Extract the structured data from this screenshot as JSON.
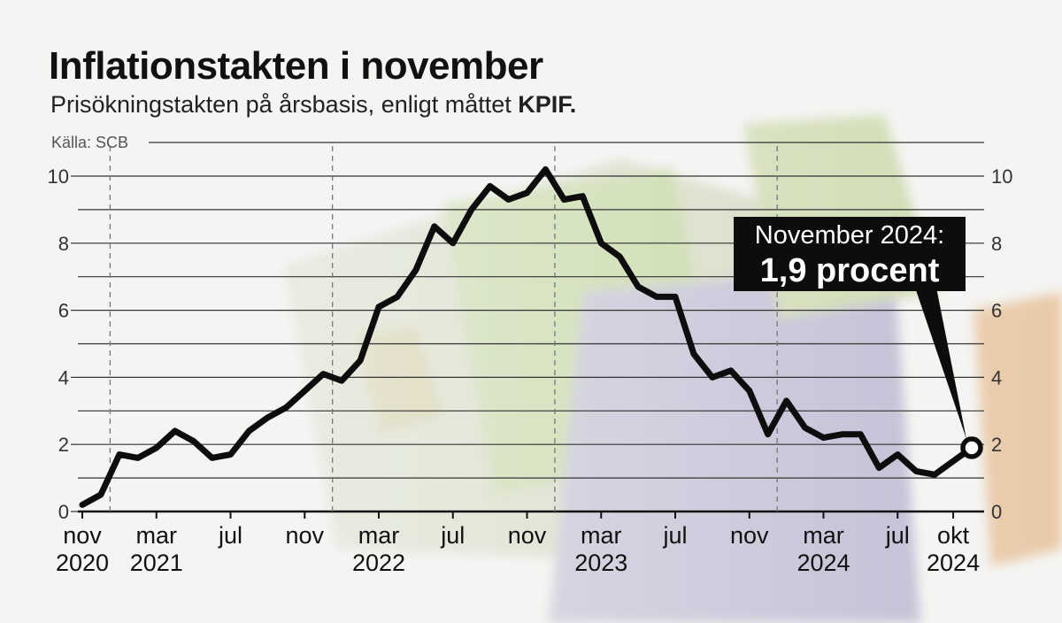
{
  "title": "Inflationstakten i november",
  "subtitle": {
    "text": "Prisökningstakten på årsbasis, enligt måttet ",
    "emphasis": "KPIF."
  },
  "source": "Källa: SCB",
  "annotation": {
    "line1": "November 2024:",
    "line2": "1,9 procent"
  },
  "colors": {
    "line": "#0d0d0d",
    "grid": "#333333",
    "text": "#111111",
    "annotation_bg": "#0d0d0d",
    "background": "#f4f4f2"
  },
  "chart_data": {
    "type": "line",
    "title": "Inflationstakten i november",
    "subtitle": "Prisökningstakten på årsbasis, enligt måttet KPIF.",
    "xlabel": "",
    "ylabel": "",
    "ylim": [
      0,
      10
    ],
    "yticks": [
      0,
      2,
      4,
      6,
      8,
      10
    ],
    "grid": true,
    "legend": "none",
    "x_tick_labels": [
      {
        "month": "nov",
        "year": "2020",
        "index": 0
      },
      {
        "month": "mar",
        "year": "2021",
        "index": 4
      },
      {
        "month": "jul",
        "year": "",
        "index": 8
      },
      {
        "month": "nov",
        "year": "",
        "index": 12
      },
      {
        "month": "mar",
        "year": "2022",
        "index": 16
      },
      {
        "month": "jul",
        "year": "",
        "index": 20
      },
      {
        "month": "nov",
        "year": "",
        "index": 24
      },
      {
        "month": "mar",
        "year": "2023",
        "index": 28
      },
      {
        "month": "jul",
        "year": "",
        "index": 32
      },
      {
        "month": "nov",
        "year": "",
        "index": 36
      },
      {
        "month": "mar",
        "year": "2024",
        "index": 40
      },
      {
        "month": "jul",
        "year": "",
        "index": 44
      },
      {
        "month": "okt",
        "year": "2024",
        "index": 47
      }
    ],
    "year_boundaries_after_index": [
      1,
      13,
      25,
      37
    ],
    "series": [
      {
        "start": "2020-11",
        "values": [
          0.2,
          0.5,
          1.7,
          1.6,
          1.9,
          2.4,
          2.1,
          1.6,
          1.7,
          2.4,
          2.8,
          3.1,
          3.6,
          4.1,
          3.9,
          4.5,
          6.1,
          6.4,
          7.2,
          8.5,
          8.0,
          9.0,
          9.7,
          9.3,
          9.5,
          10.2,
          9.3,
          9.4,
          8.0,
          7.6,
          6.7,
          6.4,
          6.4,
          4.7,
          4.0,
          4.2,
          3.6,
          2.3,
          3.3,
          2.5,
          2.2,
          2.3,
          2.3,
          1.3,
          1.7,
          1.2,
          1.1,
          1.5,
          1.9
        ],
        "highlight": {
          "index": 48,
          "value": 1.9
        }
      }
    ]
  }
}
